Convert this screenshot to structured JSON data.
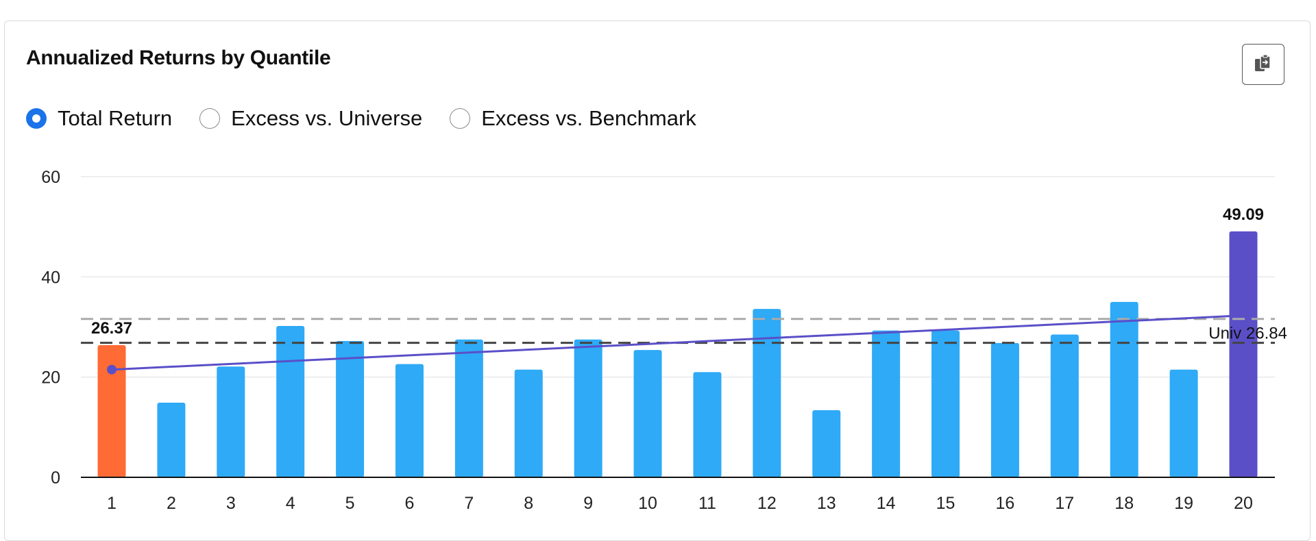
{
  "header": {
    "title": "Annualized Returns by Quantile",
    "copy_icon": "clipboard-copy-icon"
  },
  "radio_options": [
    {
      "label": "Total Return",
      "selected": true
    },
    {
      "label": "Excess vs. Universe",
      "selected": false
    },
    {
      "label": "Excess vs. Benchmark",
      "selected": false
    }
  ],
  "chart_data": {
    "type": "bar",
    "title": "",
    "xlabel": "",
    "ylabel": "",
    "ylim": [
      0,
      60
    ],
    "yticks": [
      0,
      20,
      40,
      60
    ],
    "grid": true,
    "categories": [
      "1",
      "2",
      "3",
      "4",
      "5",
      "6",
      "7",
      "8",
      "9",
      "10",
      "11",
      "12",
      "13",
      "14",
      "15",
      "16",
      "17",
      "18",
      "19",
      "20"
    ],
    "values": [
      26.37,
      14.9,
      22.1,
      30.2,
      27.2,
      22.6,
      27.5,
      21.5,
      27.5,
      25.4,
      21.0,
      33.6,
      13.4,
      29.3,
      29.3,
      26.8,
      28.5,
      35.0,
      21.5,
      49.09
    ],
    "data_labels": [
      {
        "category": "1",
        "text": "26.37"
      },
      {
        "category": "20",
        "text": "49.09"
      }
    ],
    "reference_lines": [
      {
        "label": "Univ 26.84",
        "value": 26.84,
        "style": "dashed",
        "color": "#444444"
      },
      {
        "label": "",
        "value": 31.6,
        "style": "dashed",
        "color": "#aaaaaa"
      }
    ],
    "trend_line": {
      "start": {
        "category": "1",
        "value": 21.5
      },
      "end": {
        "category": "20",
        "value": 32.3
      },
      "color": "#5a4fc8"
    },
    "colors": {
      "default": "#2eaaf7",
      "first": "#ff6b35",
      "last": "#5b4fc8",
      "grid": "#e3e3e3",
      "axis": "#111111"
    }
  }
}
